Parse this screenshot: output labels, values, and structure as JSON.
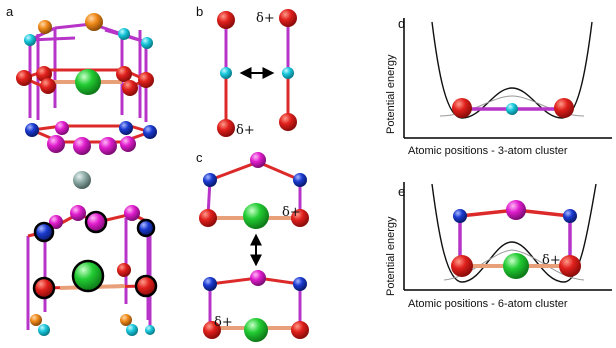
{
  "figure": {
    "panels": {
      "a": "a",
      "b": "b",
      "c": "c",
      "d": "d",
      "e": "e"
    },
    "annotations": {
      "b_top_delta": "δ+",
      "b_bottom_delta": "δ+",
      "c_top_delta": "δ+",
      "c_bottom_delta": "δ+",
      "e_delta": "δ+"
    },
    "plots": {
      "d": {
        "ylabel": "Potential energy",
        "xlabel": "Atomic positions - 3-atom cluster"
      },
      "e": {
        "ylabel": "Potential energy",
        "xlabel": "Atomic positions - 6-atom cluster"
      }
    },
    "colors": {
      "red_atom": "#e0201c",
      "cyan_atom": "#19c8dc",
      "green_atom": "#22cc33",
      "magenta_atom": "#e01ccd",
      "blue_atom": "#1a3ad0",
      "orange_atom": "#f08a1a",
      "gray_atom": "#7f9e9a",
      "purple_bond": "#b634c8",
      "red_bond": "#dc2a2a",
      "orange_bond": "#e8a07a"
    }
  }
}
